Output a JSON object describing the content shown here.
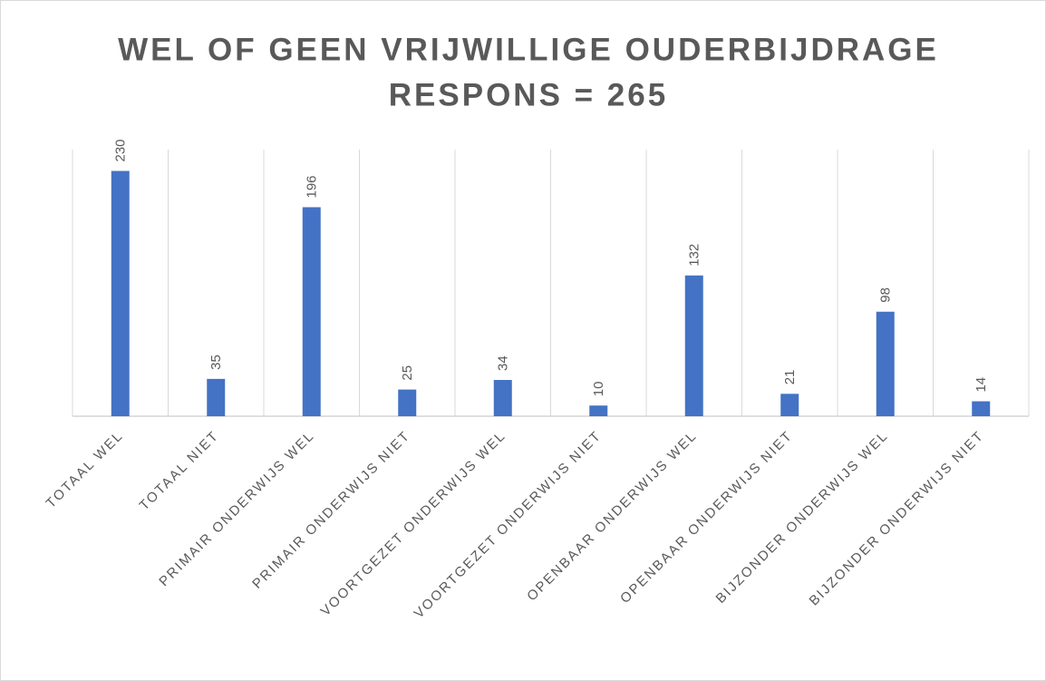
{
  "chart_data": {
    "type": "bar",
    "title": "WEL OF GEEN VRIJWILLIGE OUDERBIJDRAGE",
    "subtitle": "RESPONS = 265",
    "categories": [
      "TOTAAL WEL",
      "TOTAAL NIET",
      "PRIMAIR ONDERWIJS WEL",
      "PRIMAIR ONDERWIJS NIET",
      "VOORTGEZET ONDERWIJS WEL",
      "VOORTGEZET ONDERWIJS NIET",
      "OPENBAAR ONDERWIJS WEL",
      "OPENBAAR ONDERWIJS NIET",
      "BIJZONDER ONDERWIJS WEL",
      "BIJZONDER ONDERWIJS NIET"
    ],
    "values": [
      230,
      35,
      196,
      25,
      34,
      10,
      132,
      21,
      98,
      14
    ],
    "color": "#4472c4",
    "ylim": [
      0,
      250
    ],
    "grid": true
  }
}
